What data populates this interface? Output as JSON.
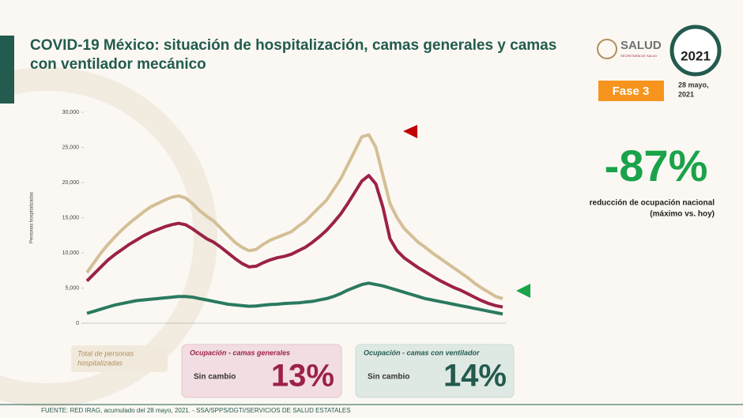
{
  "slide": {
    "title_line1": "COVID-19 México: situación de hospitalización, camas generales y camas",
    "title_line2": "con ventilador mecánico",
    "logo_text": "SALUD",
    "logo_subtext": "SECRETARÍA DE SALUD",
    "badge_year": "2021",
    "phase": "Fase 3",
    "date_line1": "28 mayo,",
    "date_line2": "2021",
    "headline": "-87%",
    "headline_note_line1": "reducción de ocupación nacional",
    "headline_note_line2": "(máximo vs. hoy)",
    "total_box_line1": "Total de personas",
    "total_box_line2": "hospitalizadas",
    "general_status": "Sin cambio",
    "general_pct": "13%",
    "vent_status": "Sin cambio",
    "vent_pct": "14%",
    "footer": "FUENTE: RED IRAG, acumulado del 28 mayo, 2021. -  SSA/SPPS/DGTI/SERVICIOS DE SALUD ESTATALES"
  },
  "chart_data": {
    "type": "line",
    "y_label": "Personas hospitalizadas",
    "ylim": [
      0,
      30000
    ],
    "yticks": [
      0,
      {
        "value": 5000,
        "label": "5,000"
      },
      {
        "value": 10000,
        "label": "10,000"
      },
      {
        "value": 15000,
        "label": "15,000"
      },
      {
        "value": 20000,
        "label": "20,000"
      },
      {
        "value": 25000,
        "label": "25,000"
      },
      {
        "value": 30000,
        "label": "30,000"
      }
    ],
    "grid": false,
    "series": [
      {
        "name": "Total de personas hospitalizadas",
        "color": "#d4bf96",
        "values": [
          7200,
          8600,
          10000,
          11200,
          12300,
          13300,
          14200,
          15000,
          15800,
          16500,
          17000,
          17500,
          17900,
          18100,
          17800,
          17000,
          16000,
          15200,
          14500,
          13500,
          12500,
          11500,
          10800,
          10300,
          10500,
          11200,
          11800,
          12200,
          12600,
          13000,
          13800,
          14500,
          15500,
          16500,
          17500,
          19000,
          20500,
          22500,
          24500,
          26500,
          26800,
          25000,
          21000,
          17000,
          15000,
          13500,
          12500,
          11500,
          10800,
          10000,
          9300,
          8600,
          7900,
          7200,
          6500,
          5700,
          5000,
          4400,
          3800,
          3500
        ]
      },
      {
        "name": "Ocupación - camas generales",
        "color": "#9b2247",
        "values": [
          6000,
          7000,
          8000,
          9000,
          9800,
          10500,
          11200,
          11800,
          12400,
          12900,
          13300,
          13700,
          14000,
          14200,
          14000,
          13400,
          12700,
          12000,
          11500,
          10800,
          10000,
          9200,
          8500,
          8000,
          8100,
          8600,
          9000,
          9300,
          9500,
          9800,
          10300,
          10800,
          11500,
          12300,
          13200,
          14300,
          15500,
          17000,
          18600,
          20200,
          21000,
          19800,
          16500,
          12000,
          10300,
          9300,
          8600,
          7900,
          7300,
          6700,
          6100,
          5600,
          5100,
          4700,
          4200,
          3700,
          3200,
          2800,
          2500,
          2300
        ]
      },
      {
        "name": "Ocupación - camas con ventilador",
        "color": "#2a7a5f",
        "values": [
          1400,
          1700,
          2000,
          2300,
          2600,
          2800,
          3000,
          3200,
          3300,
          3400,
          3500,
          3600,
          3700,
          3800,
          3800,
          3700,
          3500,
          3300,
          3100,
          2900,
          2700,
          2600,
          2500,
          2400,
          2450,
          2550,
          2650,
          2700,
          2800,
          2850,
          2900,
          3000,
          3100,
          3300,
          3500,
          3800,
          4200,
          4700,
          5100,
          5500,
          5700,
          5500,
          5300,
          5000,
          4700,
          4400,
          4100,
          3800,
          3500,
          3300,
          3100,
          2900,
          2700,
          2500,
          2300,
          2100,
          1900,
          1700,
          1500,
          1300
        ]
      }
    ]
  }
}
